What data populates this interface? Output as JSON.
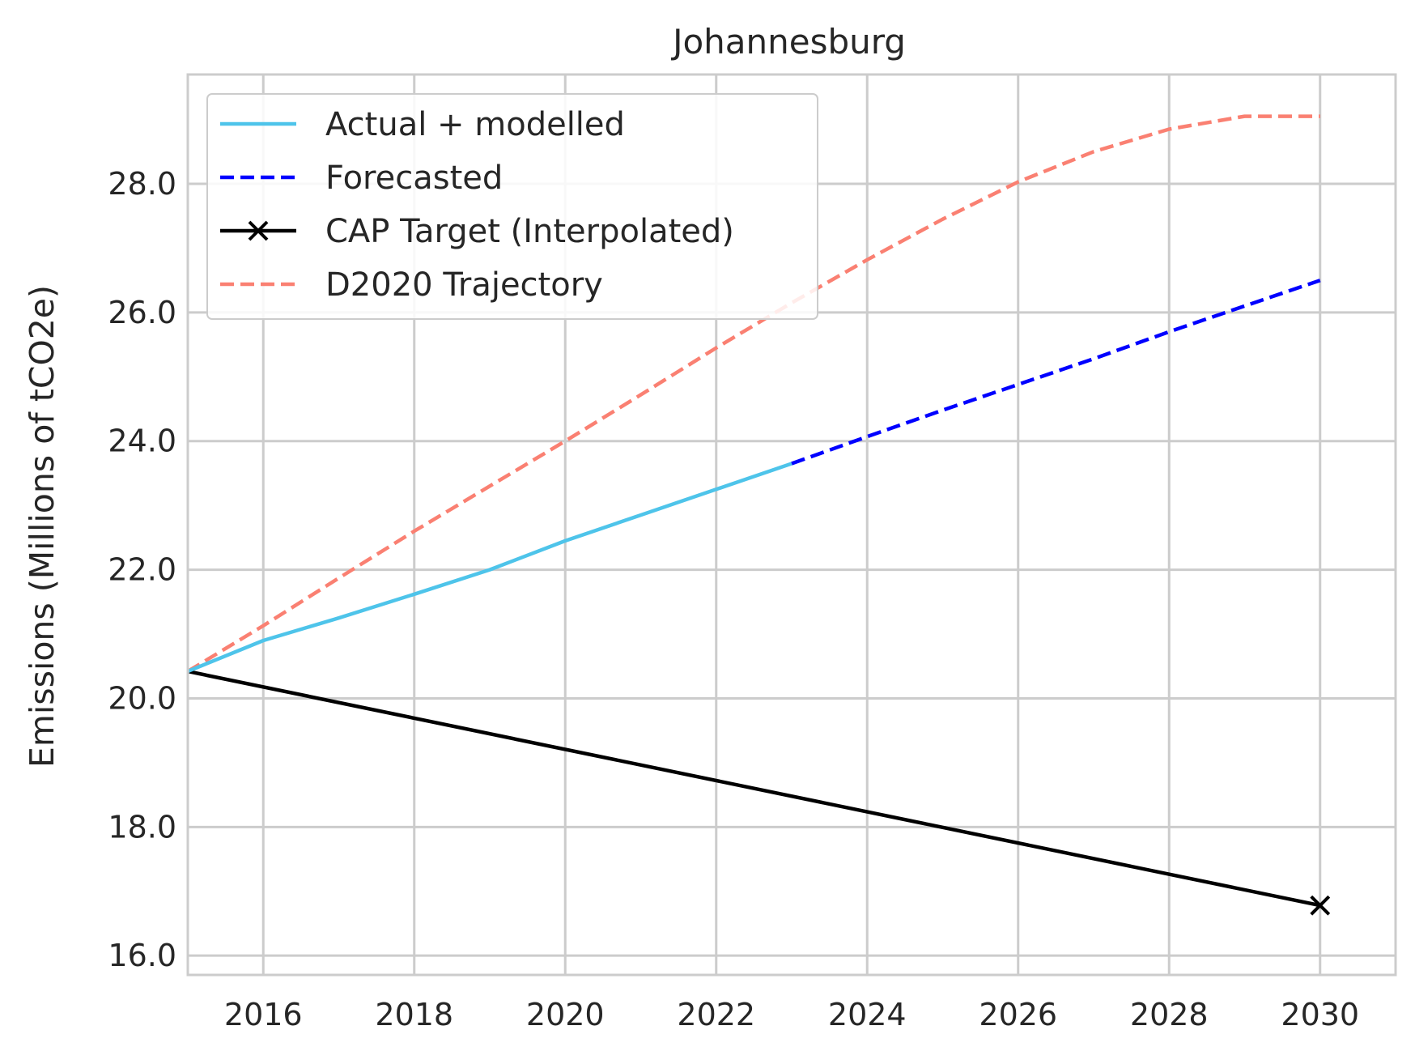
{
  "chart_data": {
    "type": "line",
    "title": "Johannesburg",
    "xlabel": "",
    "ylabel": "Emissions (Millions of tCO2e)",
    "xlim": [
      2015,
      2031
    ],
    "ylim": [
      15.7,
      29.7
    ],
    "xticks": [
      2016,
      2018,
      2020,
      2022,
      2024,
      2026,
      2028,
      2030
    ],
    "yticks": [
      16.0,
      18.0,
      20.0,
      22.0,
      24.0,
      26.0,
      28.0
    ],
    "grid": true,
    "legend_position": "upper-left",
    "series": [
      {
        "name": "Actual + modelled",
        "color": "#4ec4ea",
        "style": "solid",
        "x": [
          2015,
          2016,
          2017,
          2018,
          2019,
          2020,
          2021,
          2022,
          2023
        ],
        "y": [
          20.42,
          20.9,
          21.25,
          21.62,
          22.0,
          22.45,
          22.85,
          23.25,
          23.65
        ]
      },
      {
        "name": "Forecasted",
        "color": "#0000ff",
        "style": "dashed",
        "x": [
          2023,
          2024,
          2025,
          2026,
          2027,
          2028,
          2029,
          2030
        ],
        "y": [
          23.65,
          24.07,
          24.48,
          24.88,
          25.28,
          25.7,
          26.1,
          26.5
        ]
      },
      {
        "name": "CAP Target (Interpolated)",
        "color": "#000000",
        "style": "solid-marker-end",
        "marker": "x",
        "x": [
          2015,
          2030
        ],
        "y": [
          20.42,
          16.78
        ]
      },
      {
        "name": "D2020 Trajectory",
        "color": "#fa8072",
        "style": "dashed",
        "x": [
          2015,
          2016,
          2017,
          2018,
          2019,
          2020,
          2021,
          2022,
          2023,
          2024,
          2025,
          2026,
          2027,
          2028,
          2029,
          2030
        ],
        "y": [
          20.42,
          21.13,
          21.87,
          22.6,
          23.3,
          24.0,
          24.72,
          25.45,
          26.15,
          26.82,
          27.45,
          28.03,
          28.5,
          28.85,
          29.05,
          29.05
        ]
      }
    ]
  }
}
